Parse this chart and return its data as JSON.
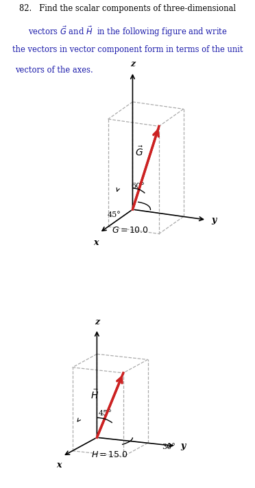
{
  "fig_width": 3.72,
  "fig_height": 7.13,
  "dpi": 100,
  "box_color": "#aaaaaa",
  "vector_color": "#cc2222",
  "text_color_black": "#000000",
  "text_color_blue": "#1a1aaa",
  "header_line1": "82.   Find the scalar components of three-dimensional",
  "header_line2": "vectors $\\vec{G}$ and $\\vec{H}$  in the following figure and write",
  "header_line3": "the vectors in vector component form in terms of the unit",
  "header_line4": "vectors of the axes.",
  "G_label": "$\\vec{G}$",
  "H_label": "$\\vec{H}$",
  "G_eq": "$G = 10.0$",
  "H_eq": "$H = 15.0$",
  "angle_60": "60°",
  "angle_45_G": "45°",
  "angle_45_H": "45°",
  "angle_30": "30°",
  "axis_z": "z",
  "axis_y": "y",
  "axis_x": "x"
}
